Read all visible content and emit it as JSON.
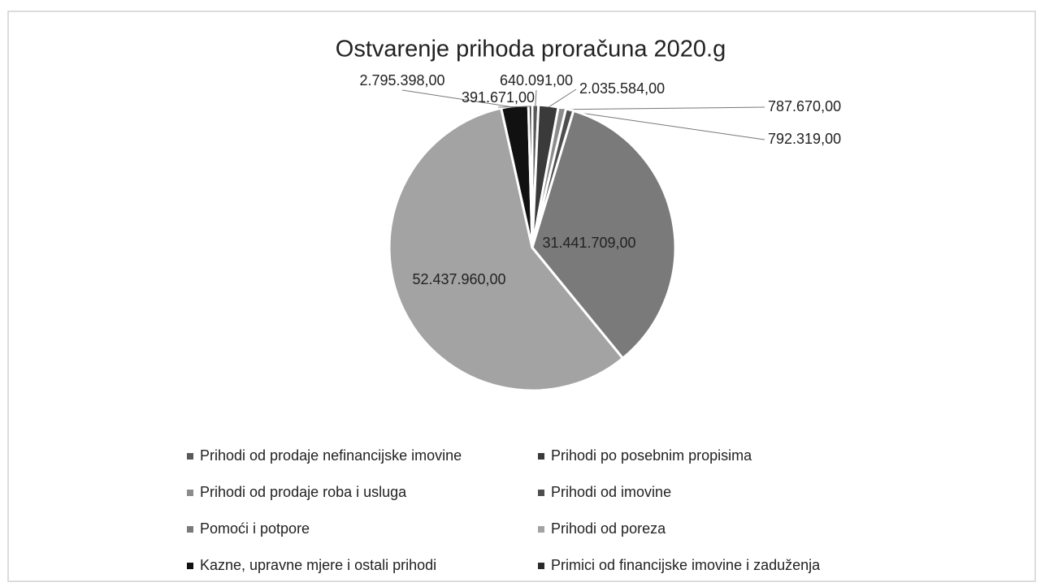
{
  "chart_data": {
    "type": "pie",
    "title": "Ostvarenje prihoda proračuna 2020.g",
    "categories": [
      "Prihodi od prodaje nefinancijske imovine",
      "Prihodi po posebnim propisima",
      "Prihodi od prodaje roba i usluga",
      "Prihodi od imovine",
      "Pomoći i potpore",
      "Prihodi od poreza",
      "Kazne, upravne mjere i ostali prihodi",
      "Primici od financijske imovine i zaduženja"
    ],
    "values": [
      640091,
      2035584,
      787670,
      792319,
      31441709,
      52437960,
      2795398,
      391671
    ],
    "value_labels": [
      "640.091,00",
      "2.035.584,00",
      "787.670,00",
      "792.319,00",
      "31.441.709,00",
      "52.437.960,00",
      "2.795.398,00",
      "391.671,00"
    ],
    "colors": [
      "#5a5a5a",
      "#3a3a3a",
      "#8c8c8c",
      "#4e4e4e",
      "#7a7a7a",
      "#a3a3a3",
      "#111111",
      "#2a2a2a"
    ],
    "legend": "bottom"
  }
}
